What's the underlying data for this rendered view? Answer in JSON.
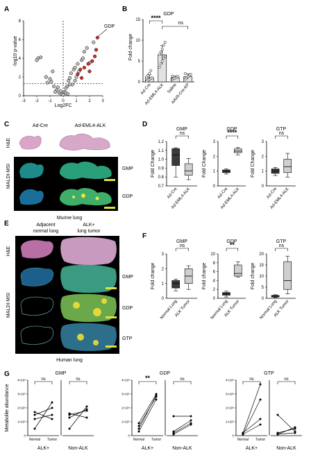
{
  "panels": {
    "A": {
      "label": "A",
      "xlabel": "Log2FC",
      "ylabel": "-log10 p-value",
      "annotation": "GDP",
      "xticks": [
        "-3",
        "-2",
        "-1",
        "0",
        "1",
        "2",
        "3"
      ],
      "yticks": [
        "0",
        "2",
        "4",
        "6",
        "8"
      ]
    },
    "B": {
      "label": "B",
      "title": "GDP",
      "ylabel": "Fold change",
      "yticks": [
        "0",
        "5",
        "10",
        "15"
      ],
      "categories": [
        "Ad-Cre",
        "Ad-EML4-ALK",
        "Saline",
        "AAV9-Cre-KP"
      ],
      "sig1": "****",
      "sig2": "ns"
    },
    "C": {
      "label": "C",
      "col1": "Ad-Cre",
      "col2": "Ad-EML4-ALK",
      "row1": "H&E",
      "row2": "MALDI-MSI",
      "tag1": "GMP",
      "tag2": "GDP",
      "caption": "Murine lung"
    },
    "D": {
      "label": "D",
      "titles": [
        "GMP",
        "GDP",
        "GTP"
      ],
      "ylabel": "Fold Change",
      "categories": [
        "Ad-Cre",
        "Ad-EML4-ALK"
      ],
      "sig": [
        "ns",
        "****",
        "ns"
      ],
      "yticks_gmp": [
        "0.7",
        "0.8",
        "0.9",
        "1.0",
        "1.1",
        "1.2"
      ],
      "yticks_gdp": [
        "0",
        "1",
        "2",
        "3"
      ],
      "yticks_gtp": [
        "0",
        "1",
        "2",
        "3"
      ]
    },
    "E": {
      "label": "E",
      "col1": "Adjacent\nnormal lung",
      "col1a": "Adjacent",
      "col1b": "normal lung",
      "col2a": "ALK+",
      "col2b": "lung tumor",
      "row1": "H&E",
      "row2": "MALDI-MSI",
      "tags": [
        "GMP",
        "GDP",
        "GTP"
      ],
      "caption": "Human lung"
    },
    "F": {
      "label": "F",
      "titles": [
        "GMP",
        "GDP",
        "GTP"
      ],
      "ylabel": "Fold change",
      "categories": [
        "Normal Lung",
        "ALK Tumor"
      ],
      "sig": [
        "ns",
        "**",
        "ns"
      ],
      "yticks_gmp": [
        "0",
        "1",
        "2",
        "3"
      ],
      "yticks_gdp": [
        "0",
        "2",
        "4",
        "6",
        "8",
        "10"
      ],
      "yticks_gtp": [
        "0",
        "5",
        "10",
        "15",
        "20"
      ]
    },
    "G": {
      "label": "G",
      "titles": [
        "GMP",
        "GDP",
        "GTP"
      ],
      "ylabel": "Metabolite abundance",
      "yticks": [
        "0",
        "1×10⁶",
        "2×10⁶",
        "3×10⁶",
        "4×10⁶"
      ],
      "groups": [
        "ALK+",
        "Non-ALK"
      ],
      "xcats": [
        "Normal",
        "Tumor"
      ],
      "sig": [
        "ns",
        "ns",
        "**",
        "ns",
        "ns",
        "ns"
      ]
    }
  },
  "chart_data": [
    {
      "panel": "A",
      "type": "scatter",
      "xlabel": "Log2FC",
      "ylabel": "-log10 p-value",
      "xlim": [
        -3,
        3
      ],
      "ylim": [
        0,
        8
      ],
      "threshold_y": 1.3,
      "points_gray": [
        [
          -1.9,
          4.0
        ],
        [
          -2.0,
          3.8
        ],
        [
          -1.7,
          4.1
        ],
        [
          -1.3,
          2.0
        ],
        [
          -1.0,
          1.8
        ],
        [
          -0.9,
          1.5
        ],
        [
          -0.8,
          2.6
        ],
        [
          -1.2,
          1.4
        ],
        [
          -0.7,
          1.0
        ],
        [
          -0.5,
          0.6
        ],
        [
          -0.3,
          0.3
        ],
        [
          -0.2,
          0.5
        ],
        [
          -0.1,
          0.2
        ],
        [
          0.0,
          0.1
        ],
        [
          0.1,
          0.4
        ],
        [
          0.2,
          0.3
        ],
        [
          -0.4,
          0.9
        ],
        [
          0.3,
          1.0
        ],
        [
          0.4,
          1.6
        ],
        [
          0.5,
          1.9
        ],
        [
          0.6,
          2.4
        ],
        [
          0.7,
          1.2
        ],
        [
          0.8,
          2.8
        ],
        [
          0.9,
          3.0
        ],
        [
          1.0,
          2.0
        ],
        [
          1.1,
          3.4
        ],
        [
          1.2,
          2.6
        ],
        [
          1.4,
          3.8
        ],
        [
          1.5,
          4.0
        ],
        [
          1.6,
          4.7
        ],
        [
          1.8,
          5.1
        ],
        [
          2.0,
          3.5
        ],
        [
          2.3,
          5.7
        ],
        [
          0.2,
          0.8
        ],
        [
          0.5,
          1.2
        ],
        [
          0.9,
          1.6
        ],
        [
          -0.6,
          0.4
        ],
        [
          0.35,
          0.2
        ]
      ],
      "points_red": [
        [
          1.3,
          2.8
        ],
        [
          1.6,
          3.0
        ],
        [
          1.9,
          3.4
        ],
        [
          2.2,
          3.7
        ],
        [
          2.0,
          2.6
        ],
        [
          2.4,
          4.2
        ],
        [
          2.5,
          4.9
        ],
        [
          1.4,
          1.9
        ],
        [
          1.1,
          2.3
        ],
        [
          2.6,
          6.2
        ]
      ]
    },
    {
      "panel": "B",
      "type": "bar",
      "title": "GDP",
      "categories": [
        "Ad-Cre",
        "Ad-EML4-ALK",
        "Saline",
        "AAV9-Cre-KP"
      ],
      "values": [
        1.0,
        6.5,
        1.0,
        1.3
      ],
      "errors": [
        0.8,
        2.2,
        0.4,
        0.6
      ],
      "ylim": [
        0,
        15
      ],
      "points": [
        [
          0.2,
          0.4,
          0.6,
          0.8,
          1.0,
          1.2,
          1.5,
          2.0,
          2.7
        ],
        [
          3.5,
          4.3,
          5.0,
          5.7,
          6.2,
          6.6,
          7.2,
          7.8,
          8.8,
          9.5
        ],
        [
          0.6,
          0.8,
          0.9,
          1.1,
          1.3,
          1.4
        ],
        [
          0.7,
          1.0,
          1.3,
          1.6,
          1.8,
          2.0
        ]
      ]
    },
    {
      "panel": "D-GMP",
      "type": "box",
      "categories": [
        "Ad-Cre",
        "Ad-EML4-ALK"
      ],
      "ylim": [
        0.7,
        1.2
      ],
      "boxes": [
        {
          "min": 0.8,
          "q1": 0.93,
          "median": 1.05,
          "q3": 1.12,
          "max": 1.13
        },
        {
          "min": 0.77,
          "q1": 0.82,
          "median": 0.87,
          "q3": 0.95,
          "max": 1.01
        }
      ]
    },
    {
      "panel": "D-GDP",
      "type": "box",
      "categories": [
        "Ad-Cre",
        "Ad-EML4-ALK"
      ],
      "ylim": [
        0,
        3
      ],
      "boxes": [
        {
          "min": 0.8,
          "q1": 0.9,
          "median": 1.0,
          "q3": 1.08,
          "max": 1.15
        },
        {
          "min": 2.1,
          "q1": 2.25,
          "median": 2.35,
          "q3": 2.5,
          "max": 2.6
        }
      ]
    },
    {
      "panel": "D-GTP",
      "type": "box",
      "categories": [
        "Ad-Cre",
        "Ad-EML4-ALK"
      ],
      "ylim": [
        0,
        3
      ],
      "boxes": [
        {
          "min": 0.7,
          "q1": 0.85,
          "median": 1.0,
          "q3": 1.15,
          "max": 1.25
        },
        {
          "min": 0.6,
          "q1": 0.9,
          "median": 1.3,
          "q3": 1.8,
          "max": 2.2
        }
      ]
    },
    {
      "panel": "F-GMP",
      "type": "box",
      "categories": [
        "Normal Lung",
        "ALK Tumor"
      ],
      "ylim": [
        0,
        3
      ],
      "boxes": [
        {
          "min": 0.5,
          "q1": 0.7,
          "median": 1.0,
          "q3": 1.2,
          "max": 1.3
        },
        {
          "min": 0.6,
          "q1": 1.0,
          "median": 1.5,
          "q3": 2.0,
          "max": 2.2
        }
      ]
    },
    {
      "panel": "F-GDP",
      "type": "box",
      "categories": [
        "Normal Lung",
        "ALK Tumor"
      ],
      "ylim": [
        0,
        10
      ],
      "boxes": [
        {
          "min": 0.3,
          "q1": 0.7,
          "median": 1.0,
          "q3": 1.3,
          "max": 1.6
        },
        {
          "min": 4.8,
          "q1": 5.0,
          "median": 5.6,
          "q3": 7.5,
          "max": 8.2
        }
      ]
    },
    {
      "panel": "F-GTP",
      "type": "box",
      "categories": [
        "Normal Lung",
        "ALK Tumor"
      ],
      "ylim": [
        0,
        20
      ],
      "boxes": [
        {
          "min": 0.3,
          "q1": 0.6,
          "median": 1.0,
          "q3": 1.3,
          "max": 1.6
        },
        {
          "min": 2.0,
          "q1": 4.0,
          "median": 8.0,
          "q3": 16.5,
          "max": 19.0
        }
      ]
    },
    {
      "panel": "G",
      "type": "line",
      "ylim": [
        0,
        4000000
      ],
      "subplots": [
        {
          "metabolite": "GMP",
          "group": "ALK+",
          "pairs": [
            [
              1500000,
              2000000
            ],
            [
              1700000,
              1200000
            ],
            [
              1200000,
              1500000
            ],
            [
              500000,
              2400000
            ]
          ]
        },
        {
          "metabolite": "GMP",
          "group": "Non-ALK",
          "pairs": [
            [
              1600000,
              1300000
            ],
            [
              1500000,
              1800000
            ],
            [
              1300000,
              1900000
            ],
            [
              500000,
              2100000
            ]
          ]
        },
        {
          "metabolite": "GDP",
          "group": "ALK+",
          "pairs": [
            [
              900000,
              3000000
            ],
            [
              700000,
              2800000
            ],
            [
              500000,
              2900000
            ],
            [
              300000,
              2600000
            ]
          ]
        },
        {
          "metabolite": "GDP",
          "group": "Non-ALK",
          "pairs": [
            [
              1400000,
              1400000
            ],
            [
              200000,
              900000
            ],
            [
              300000,
              1100000
            ],
            [
              100000,
              800000
            ]
          ]
        },
        {
          "metabolite": "GTP",
          "group": "ALK+",
          "pairs": [
            [
              200000,
              3700000
            ],
            [
              100000,
              2600000
            ],
            [
              200000,
              1200000
            ],
            [
              100000,
              800000
            ]
          ]
        },
        {
          "metabolite": "GTP",
          "group": "Non-ALK",
          "pairs": [
            [
              1500000,
              300000
            ],
            [
              100000,
              600000
            ],
            [
              200000,
              500000
            ],
            [
              100000,
              200000
            ]
          ]
        }
      ]
    }
  ]
}
